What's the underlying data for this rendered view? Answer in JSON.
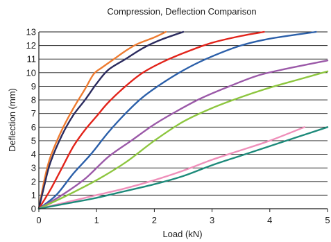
{
  "chart_data": {
    "type": "line",
    "title": "Compression, Deflection Comparison",
    "xlabel": "Load (kN)",
    "ylabel": "Deflection (mm)",
    "xlim": [
      0,
      5
    ],
    "ylim": [
      0,
      13
    ],
    "x_ticks": [
      "0",
      "1",
      "2",
      "3",
      "4",
      "5"
    ],
    "y_ticks": [
      "0",
      "1",
      "2",
      "3",
      "4",
      "5",
      "6",
      "7",
      "8",
      "9",
      "10",
      "11",
      "12",
      "13"
    ],
    "grid": "horizontal",
    "series": [
      {
        "color": "#ee7b30",
        "points": [
          [
            0,
            0
          ],
          [
            0.1,
            2.2
          ],
          [
            0.2,
            3.8
          ],
          [
            0.4,
            5.8
          ],
          [
            0.6,
            7.4
          ],
          [
            0.8,
            8.8
          ],
          [
            0.95,
            9.9
          ],
          [
            1.1,
            10.4
          ],
          [
            1.3,
            11.0
          ],
          [
            1.5,
            11.6
          ],
          [
            1.7,
            12.1
          ],
          [
            2.0,
            12.6
          ],
          [
            2.2,
            13.0
          ]
        ]
      },
      {
        "color": "#2b2b5e",
        "points": [
          [
            0,
            0
          ],
          [
            0.1,
            1.8
          ],
          [
            0.2,
            3.4
          ],
          [
            0.4,
            5.4
          ],
          [
            0.6,
            6.9
          ],
          [
            0.8,
            8.0
          ],
          [
            1.0,
            9.2
          ],
          [
            1.2,
            10.2
          ],
          [
            1.5,
            11.0
          ],
          [
            1.8,
            11.8
          ],
          [
            2.1,
            12.4
          ],
          [
            2.5,
            13.0
          ]
        ]
      },
      {
        "color": "#e2231a",
        "points": [
          [
            0,
            0
          ],
          [
            0.2,
            1.4
          ],
          [
            0.4,
            3.0
          ],
          [
            0.6,
            4.6
          ],
          [
            0.8,
            5.8
          ],
          [
            1.0,
            6.8
          ],
          [
            1.2,
            7.8
          ],
          [
            1.5,
            9.0
          ],
          [
            1.8,
            10.0
          ],
          [
            2.2,
            10.9
          ],
          [
            2.6,
            11.6
          ],
          [
            3.0,
            12.2
          ],
          [
            3.5,
            12.7
          ],
          [
            3.9,
            13.0
          ]
        ]
      },
      {
        "color": "#2b5fa9",
        "points": [
          [
            0,
            0
          ],
          [
            0.3,
            1.0
          ],
          [
            0.6,
            2.6
          ],
          [
            0.9,
            4.0
          ],
          [
            1.2,
            5.6
          ],
          [
            1.5,
            7.0
          ],
          [
            1.8,
            8.2
          ],
          [
            2.2,
            9.4
          ],
          [
            2.6,
            10.4
          ],
          [
            3.0,
            11.2
          ],
          [
            3.5,
            12.0
          ],
          [
            4.0,
            12.5
          ],
          [
            4.8,
            13.0
          ]
        ]
      },
      {
        "color": "#9b59a8",
        "points": [
          [
            0,
            0
          ],
          [
            0.4,
            1.0
          ],
          [
            0.8,
            2.2
          ],
          [
            1.2,
            3.8
          ],
          [
            1.6,
            5.0
          ],
          [
            2.0,
            6.2
          ],
          [
            2.4,
            7.2
          ],
          [
            2.8,
            8.1
          ],
          [
            3.3,
            9.0
          ],
          [
            3.8,
            9.8
          ],
          [
            4.3,
            10.3
          ],
          [
            5.0,
            10.9
          ]
        ]
      },
      {
        "color": "#8dc63f",
        "points": [
          [
            0,
            0
          ],
          [
            0.5,
            1.0
          ],
          [
            1.0,
            2.1
          ],
          [
            1.5,
            3.4
          ],
          [
            2.0,
            5.0
          ],
          [
            2.5,
            6.4
          ],
          [
            3.0,
            7.4
          ],
          [
            3.5,
            8.2
          ],
          [
            4.0,
            8.9
          ],
          [
            4.5,
            9.5
          ],
          [
            5.0,
            10.1
          ]
        ]
      },
      {
        "color": "#ef8fba",
        "points": [
          [
            0,
            0
          ],
          [
            0.5,
            0.5
          ],
          [
            1.0,
            1.0
          ],
          [
            1.5,
            1.5
          ],
          [
            2.0,
            2.1
          ],
          [
            2.5,
            2.8
          ],
          [
            3.0,
            3.6
          ],
          [
            3.5,
            4.3
          ],
          [
            4.0,
            5.0
          ],
          [
            4.6,
            6.0
          ]
        ]
      },
      {
        "color": "#1d8a7a",
        "points": [
          [
            0,
            0
          ],
          [
            0.5,
            0.4
          ],
          [
            1.0,
            0.8
          ],
          [
            1.5,
            1.3
          ],
          [
            2.0,
            1.8
          ],
          [
            2.5,
            2.4
          ],
          [
            3.0,
            3.2
          ],
          [
            3.5,
            3.9
          ],
          [
            4.0,
            4.6
          ],
          [
            4.5,
            5.3
          ],
          [
            5.0,
            6.0
          ]
        ]
      }
    ]
  }
}
